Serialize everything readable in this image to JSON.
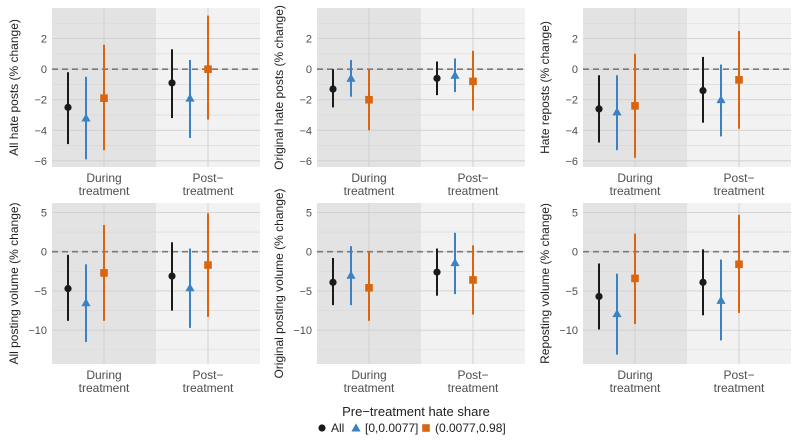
{
  "legend": {
    "title": "Pre−treatment hate share",
    "items": [
      {
        "label": "All",
        "color": "#1a1a1a",
        "shape": "circle"
      },
      {
        "label": "[0,0.0077]",
        "color": "#3a82c4",
        "shape": "triangle"
      },
      {
        "label": "(0.0077,0.98]",
        "color": "#d9650f",
        "shape": "square"
      }
    ]
  },
  "chart_data": [
    {
      "type": "errorbar",
      "ylabel": "All hate posts (% change)",
      "ylim": [
        -6.4,
        4
      ],
      "yticks": [
        2,
        0,
        -2,
        -4,
        -6
      ],
      "categories": [
        [
          "During",
          "treatment"
        ],
        [
          "Post−",
          "treatment"
        ]
      ],
      "series": [
        {
          "name": "All",
          "points": [
            {
              "est": -2.5,
              "lo": -4.9,
              "hi": -0.2
            },
            {
              "est": -0.9,
              "lo": -3.2,
              "hi": 1.3
            }
          ]
        },
        {
          "name": "[0,0.0077]",
          "points": [
            {
              "est": -3.2,
              "lo": -5.9,
              "hi": -0.5
            },
            {
              "est": -1.9,
              "lo": -4.5,
              "hi": 0.6
            }
          ]
        },
        {
          "name": "(0.0077,0.98]",
          "points": [
            {
              "est": -1.9,
              "lo": -5.3,
              "hi": 1.6
            },
            {
              "est": 0.0,
              "lo": -3.3,
              "hi": 3.5
            }
          ]
        }
      ]
    },
    {
      "type": "errorbar",
      "ylabel": "Original hate posts (% change)",
      "ylim": [
        -6.4,
        4
      ],
      "yticks": [
        2,
        0,
        -2,
        -4,
        -6
      ],
      "categories": [
        [
          "During",
          "treatment"
        ],
        [
          "Post−",
          "treatment"
        ]
      ],
      "series": [
        {
          "name": "All",
          "points": [
            {
              "est": -1.3,
              "lo": -2.5,
              "hi": 0.0
            },
            {
              "est": -0.6,
              "lo": -1.7,
              "hi": 0.5
            }
          ]
        },
        {
          "name": "[0,0.0077]",
          "points": [
            {
              "est": -0.6,
              "lo": -1.8,
              "hi": 0.6
            },
            {
              "est": -0.4,
              "lo": -1.5,
              "hi": 0.7
            }
          ]
        },
        {
          "name": "(0.0077,0.98]",
          "points": [
            {
              "est": -2.0,
              "lo": -4.0,
              "hi": 0.0
            },
            {
              "est": -0.8,
              "lo": -2.7,
              "hi": 1.2
            }
          ]
        }
      ]
    },
    {
      "type": "errorbar",
      "ylabel": "Hate reposts (% change)",
      "ylim": [
        -6.4,
        4
      ],
      "yticks": [
        2,
        0,
        -2,
        -4,
        -6
      ],
      "categories": [
        [
          "During",
          "treatment"
        ],
        [
          "Post−",
          "treatment"
        ]
      ],
      "series": [
        {
          "name": "All",
          "points": [
            {
              "est": -2.6,
              "lo": -4.8,
              "hi": -0.4
            },
            {
              "est": -1.4,
              "lo": -3.5,
              "hi": 0.8
            }
          ]
        },
        {
          "name": "[0,0.0077]",
          "points": [
            {
              "est": -2.8,
              "lo": -5.3,
              "hi": -0.4
            },
            {
              "est": -2.0,
              "lo": -4.4,
              "hi": 0.3
            }
          ]
        },
        {
          "name": "(0.0077,0.98]",
          "points": [
            {
              "est": -2.4,
              "lo": -5.8,
              "hi": 1.0
            },
            {
              "est": -0.7,
              "lo": -3.9,
              "hi": 2.5
            }
          ]
        }
      ]
    },
    {
      "type": "errorbar",
      "ylabel": "All posting volume (% change)",
      "ylim": [
        -14.3,
        6.2
      ],
      "yticks": [
        5,
        0,
        -5,
        -10
      ],
      "categories": [
        [
          "During",
          "treatment"
        ],
        [
          "Post−",
          "treatment"
        ]
      ],
      "series": [
        {
          "name": "All",
          "points": [
            {
              "est": -4.7,
              "lo": -8.8,
              "hi": -0.4
            },
            {
              "est": -3.1,
              "lo": -7.5,
              "hi": 1.2
            }
          ]
        },
        {
          "name": "[0,0.0077]",
          "points": [
            {
              "est": -6.5,
              "lo": -11.5,
              "hi": -1.6
            },
            {
              "est": -4.6,
              "lo": -9.7,
              "hi": 0.4
            }
          ]
        },
        {
          "name": "(0.0077,0.98]",
          "points": [
            {
              "est": -2.7,
              "lo": -8.8,
              "hi": 3.4
            },
            {
              "est": -1.7,
              "lo": -8.3,
              "hi": 4.9
            }
          ]
        }
      ]
    },
    {
      "type": "errorbar",
      "ylabel": "Original posting volume (% change)",
      "ylim": [
        -14.3,
        6.2
      ],
      "yticks": [
        5,
        0,
        -5,
        -10
      ],
      "categories": [
        [
          "During",
          "treatment"
        ],
        [
          "Post−",
          "treatment"
        ]
      ],
      "series": [
        {
          "name": "All",
          "points": [
            {
              "est": -3.9,
              "lo": -6.8,
              "hi": -0.8
            },
            {
              "est": -2.6,
              "lo": -5.6,
              "hi": 0.4
            }
          ]
        },
        {
          "name": "[0,0.0077]",
          "points": [
            {
              "est": -3.0,
              "lo": -6.8,
              "hi": 0.7
            },
            {
              "est": -1.4,
              "lo": -5.4,
              "hi": 2.4
            }
          ]
        },
        {
          "name": "(0.0077,0.98]",
          "points": [
            {
              "est": -4.6,
              "lo": -8.8,
              "hi": 0.0
            },
            {
              "est": -3.6,
              "lo": -8.0,
              "hi": 0.8
            }
          ]
        }
      ]
    },
    {
      "type": "errorbar",
      "ylabel": "Reposting volume (% change)",
      "ylim": [
        -14.3,
        6.2
      ],
      "yticks": [
        5,
        0,
        -5,
        -10
      ],
      "categories": [
        [
          "During",
          "treatment"
        ],
        [
          "Post−",
          "treatment"
        ]
      ],
      "series": [
        {
          "name": "All",
          "points": [
            {
              "est": -5.7,
              "lo": -9.9,
              "hi": -1.5
            },
            {
              "est": -3.9,
              "lo": -8.1,
              "hi": 0.3
            }
          ]
        },
        {
          "name": "[0,0.0077]",
          "points": [
            {
              "est": -7.9,
              "lo": -13.1,
              "hi": -2.8
            },
            {
              "est": -6.2,
              "lo": -11.3,
              "hi": -1.0
            }
          ]
        },
        {
          "name": "(0.0077,0.98]",
          "points": [
            {
              "est": -3.4,
              "lo": -9.2,
              "hi": 2.3
            },
            {
              "est": -1.6,
              "lo": -7.8,
              "hi": 4.7
            }
          ]
        }
      ]
    }
  ]
}
